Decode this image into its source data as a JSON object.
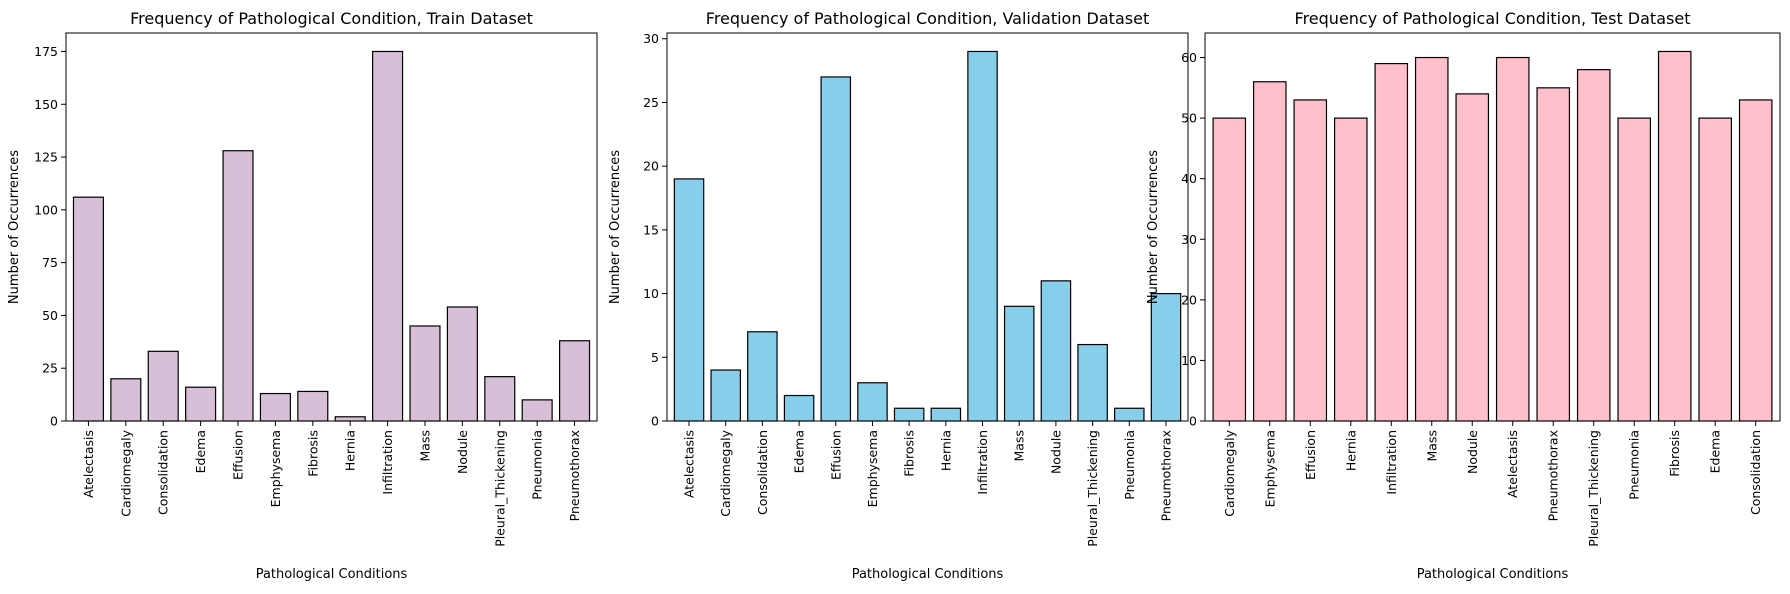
{
  "colors": {
    "train": "#D8BFD8",
    "validation": "#87CEEB",
    "test": "#FFC0CB",
    "edge": "#000000"
  },
  "chart_data": [
    {
      "type": "bar",
      "title": "Frequency of Pathological Condition, Train Dataset",
      "xlabel": "Pathological Conditions",
      "ylabel": "Number of Occurrences",
      "categories": [
        "Atelectasis",
        "Cardiomegaly",
        "Consolidation",
        "Edema",
        "Effusion",
        "Emphysema",
        "Fibrosis",
        "Hernia",
        "Infiltration",
        "Mass",
        "Nodule",
        "Pleural_Thickening",
        "Pneumonia",
        "Pneumothorax"
      ],
      "values": [
        106,
        20,
        33,
        16,
        128,
        13,
        14,
        2,
        175,
        45,
        54,
        21,
        10,
        38
      ],
      "ylim": [
        0,
        183.75
      ],
      "yticks": [
        0,
        25,
        50,
        75,
        100,
        125,
        150,
        175
      ],
      "grid": false,
      "color_key": "train"
    },
    {
      "type": "bar",
      "title": "Frequency of Pathological Condition, Validation Dataset",
      "xlabel": "Pathological Conditions",
      "ylabel": "Number of Occurrences",
      "categories": [
        "Atelectasis",
        "Cardiomegaly",
        "Consolidation",
        "Edema",
        "Effusion",
        "Emphysema",
        "Fibrosis",
        "Hernia",
        "Infiltration",
        "Mass",
        "Nodule",
        "Pleural_Thickening",
        "Pneumonia",
        "Pneumothorax"
      ],
      "values": [
        19,
        4,
        7,
        2,
        27,
        3,
        1,
        1,
        29,
        9,
        11,
        6,
        1,
        10
      ],
      "ylim": [
        0,
        30.45
      ],
      "yticks": [
        0,
        5,
        10,
        15,
        20,
        25,
        30
      ],
      "grid": false,
      "color_key": "validation"
    },
    {
      "type": "bar",
      "title": "Frequency of Pathological Condition, Test Dataset",
      "xlabel": "Pathological Conditions",
      "ylabel": "Number of Occurrences",
      "categories": [
        "Cardiomegaly",
        "Emphysema",
        "Effusion",
        "Hernia",
        "Infiltration",
        "Mass",
        "Nodule",
        "Atelectasis",
        "Pneumothorax",
        "Pleural_Thickening",
        "Pneumonia",
        "Fibrosis",
        "Edema",
        "Consolidation"
      ],
      "values": [
        50,
        56,
        53,
        50,
        59,
        60,
        54,
        60,
        55,
        58,
        50,
        61,
        50,
        53
      ],
      "ylim": [
        0,
        64.05
      ],
      "yticks": [
        0,
        10,
        20,
        30,
        40,
        50,
        60
      ],
      "grid": false,
      "color_key": "test"
    }
  ]
}
